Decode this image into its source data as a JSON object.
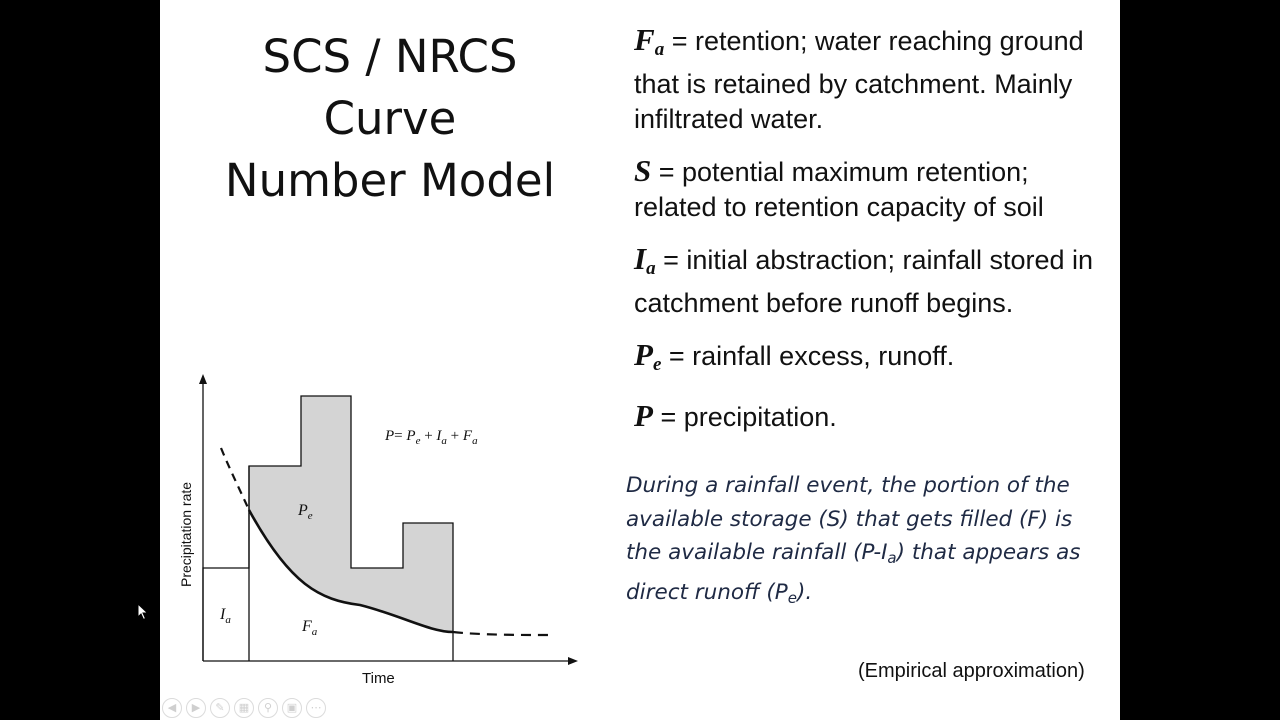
{
  "slide": {
    "title_line1": "SCS / NRCS Curve",
    "title_line2": "Number Model",
    "definitions": [
      {
        "symbol": "F",
        "sub": "a",
        "text": " = retention; water reaching ground that is retained by catchment. Mainly infiltrated water."
      },
      {
        "symbol": "S",
        "sub": "",
        "text": " = potential maximum retention; related to retention capacity of soil"
      },
      {
        "symbol": "I",
        "sub": "a",
        "text": " = initial abstraction; rainfall stored in catchment before runoff begins."
      },
      {
        "symbol": "P",
        "sub": "e",
        "text": " = rainfall excess, runoff."
      },
      {
        "symbol": "P",
        "sub": "",
        "text": " = precipitation."
      }
    ],
    "description": {
      "part1": "During a rainfall event, the portion of the available storage (S) that gets filled (F) is the available rainfall (P-I",
      "sub1": "a",
      "part2": ") that appears as direct runoff (P",
      "sub2": "e",
      "part3": ")."
    },
    "footnote": "(Empirical approximation)"
  },
  "diagram": {
    "xlabel": "Time",
    "ylabel": "Precipitation rate",
    "equation": {
      "P": "P",
      "eq": "= ",
      "Pe": "P",
      "e": "e",
      "plus1": " + ",
      "Ia": "I",
      "a": "a",
      "plus2": " + ",
      "Fa": "F",
      "a2": "a"
    },
    "label_pe": {
      "main": "P",
      "sub": "e"
    },
    "label_ia": {
      "main": "I",
      "sub": "a"
    },
    "label_fa": {
      "main": "F",
      "sub": "a"
    },
    "fill_color": "#d4d4d4",
    "stroke_color": "#111111"
  },
  "toolbar": {
    "icons": [
      "previous-slide-icon",
      "next-slide-icon",
      "pen-icon",
      "slides-grid-icon",
      "zoom-icon",
      "subtitles-icon",
      "more-options-icon"
    ]
  }
}
